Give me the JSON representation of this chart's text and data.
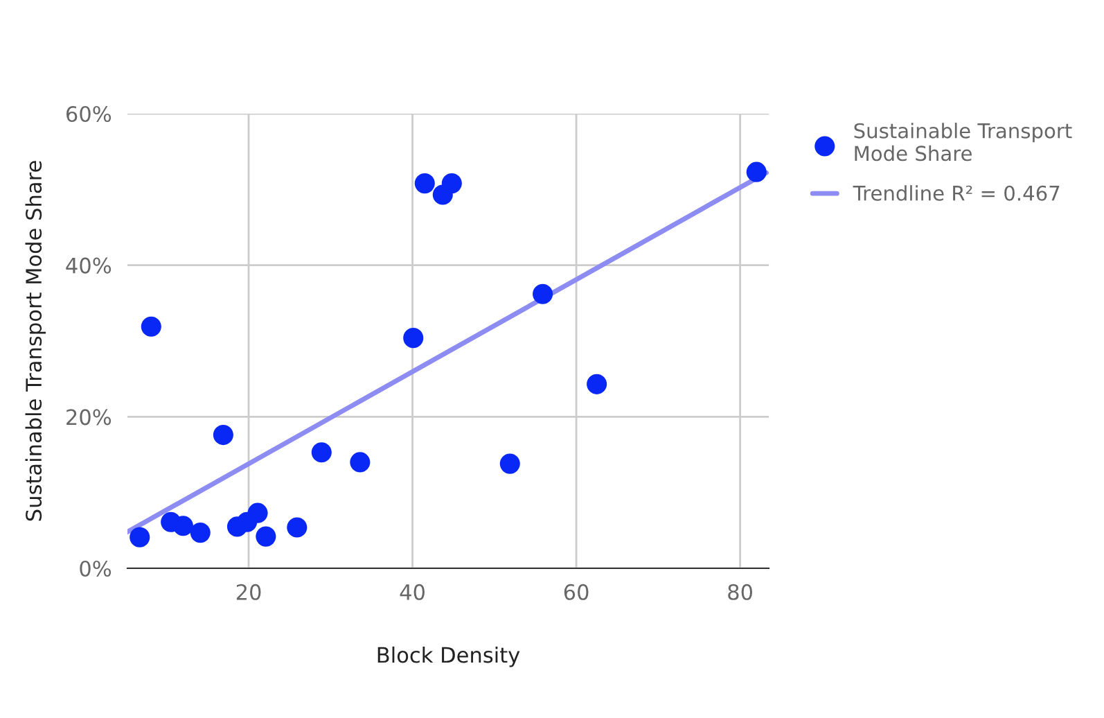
{
  "chart_data": {
    "type": "scatter",
    "xlabel": "Block Density",
    "ylabel": "Sustainable Transport Mode Share",
    "xlim": [
      5.2,
      83.5
    ],
    "ylim": [
      0,
      60
    ],
    "xticks": [
      20,
      40,
      60,
      80
    ],
    "yticks": [
      {
        "value": 0,
        "label": "0%"
      },
      {
        "value": 20,
        "label": "20%"
      },
      {
        "value": 40,
        "label": "40%"
      },
      {
        "value": 60,
        "label": "60%"
      }
    ],
    "grid": true,
    "legend": "right",
    "series": [
      {
        "name": "Sustainable Transport Mode Share",
        "marker": "circle",
        "color": "#0a28f5",
        "x": [
          6.7,
          10.5,
          12.0,
          14.1,
          16.9,
          18.6,
          19.8,
          21.1,
          22.1,
          25.9,
          28.9,
          33.6,
          8.1,
          40.1,
          41.5,
          43.7,
          44.8,
          51.9,
          55.9,
          62.5,
          82.0
        ],
        "values": [
          4.1,
          6.1,
          5.6,
          4.7,
          17.6,
          5.5,
          6.1,
          7.3,
          4.2,
          5.4,
          15.3,
          14.0,
          31.9,
          30.4,
          50.8,
          49.3,
          50.8,
          13.8,
          36.2,
          24.3,
          52.3
        ]
      },
      {
        "name": "Trendline R² = 0.467",
        "type": "line",
        "marker": "none",
        "color": "#8c8cf2",
        "line_style": "solid",
        "x": [
          5.2,
          83.2
        ],
        "values": [
          4.8,
          52.2
        ]
      }
    ]
  }
}
